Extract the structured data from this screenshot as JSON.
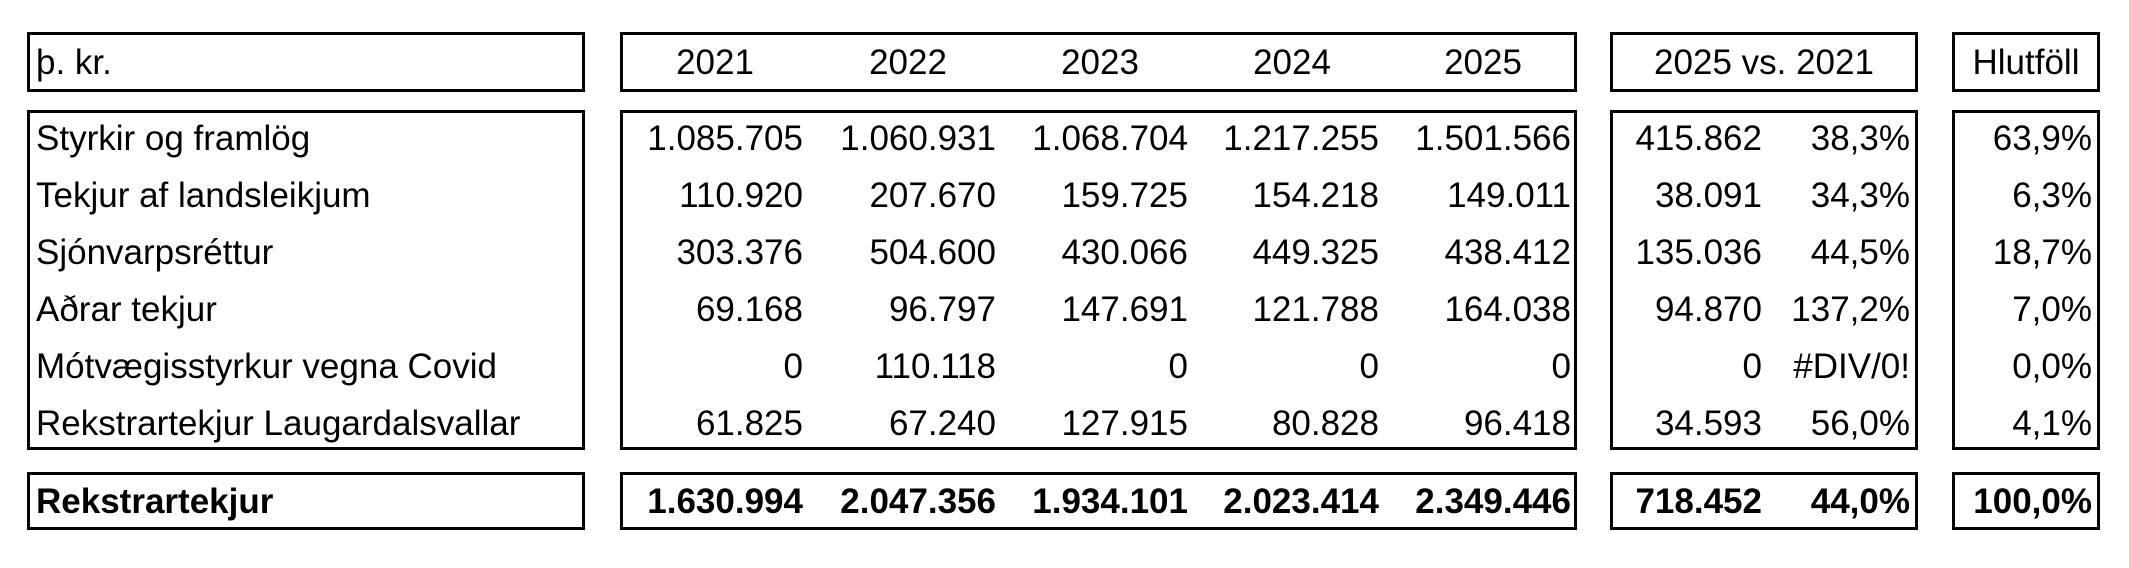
{
  "header": {
    "unit_label": "þ. kr.",
    "years": [
      "2021",
      "2022",
      "2023",
      "2024",
      "2025"
    ],
    "comparison_label": "2025 vs. 2021",
    "share_label": "Hlutföll"
  },
  "rows": [
    {
      "label": "Styrkir og framlög",
      "values": [
        "1.085.705",
        "1.060.931",
        "1.068.704",
        "1.217.255",
        "1.501.566"
      ],
      "diff": "415.862",
      "pct": "38,3%",
      "share": "63,9%"
    },
    {
      "label": "Tekjur af landsleikjum",
      "values": [
        "110.920",
        "207.670",
        "159.725",
        "154.218",
        "149.011"
      ],
      "diff": "38.091",
      "pct": "34,3%",
      "share": "6,3%"
    },
    {
      "label": "Sjónvarpsréttur",
      "values": [
        "303.376",
        "504.600",
        "430.066",
        "449.325",
        "438.412"
      ],
      "diff": "135.036",
      "pct": "44,5%",
      "share": "18,7%"
    },
    {
      "label": "Aðrar tekjur",
      "values": [
        "69.168",
        "96.797",
        "147.691",
        "121.788",
        "164.038"
      ],
      "diff": "94.870",
      "pct": "137,2%",
      "share": "7,0%"
    },
    {
      "label": "Mótvægisstyrkur vegna Covid",
      "values": [
        "0",
        "110.118",
        "0",
        "0",
        "0"
      ],
      "diff": "0",
      "pct": "#DIV/0!",
      "share": "0,0%"
    },
    {
      "label": "Rekstrartekjur Laugardalsvallar",
      "values": [
        "61.825",
        "67.240",
        "127.915",
        "80.828",
        "96.418"
      ],
      "diff": "34.593",
      "pct": "56,0%",
      "share": "4,1%"
    }
  ],
  "total": {
    "label": "Rekstrartekjur",
    "values": [
      "1.630.994",
      "2.047.356",
      "1.934.101",
      "2.023.414",
      "2.349.446"
    ],
    "diff": "718.452",
    "pct": "44,0%",
    "share": "100,0%"
  }
}
